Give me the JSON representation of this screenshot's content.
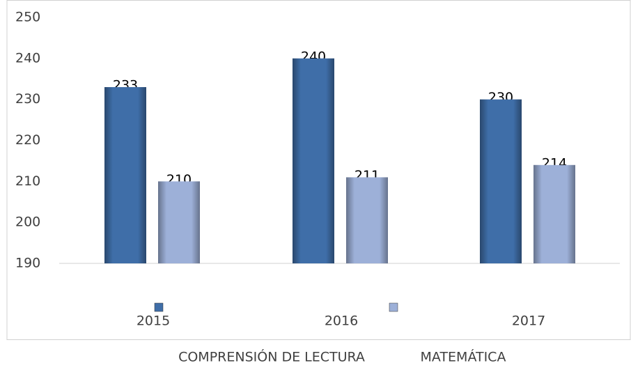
{
  "chart_data": {
    "type": "bar",
    "categories": [
      "2015",
      "2016",
      "2017"
    ],
    "series": [
      {
        "name": "COMPRENSIÓN DE LECTURA",
        "color": "#3f6ea8",
        "values": [
          233,
          240,
          230
        ]
      },
      {
        "name": "MATEMÁTICA",
        "color": "#9db0d8",
        "values": [
          210,
          211,
          214
        ]
      }
    ],
    "ylim": [
      190,
      250
    ],
    "yticks": [
      190,
      200,
      210,
      220,
      230,
      240,
      250
    ],
    "grid": false,
    "legend": "bottom"
  }
}
